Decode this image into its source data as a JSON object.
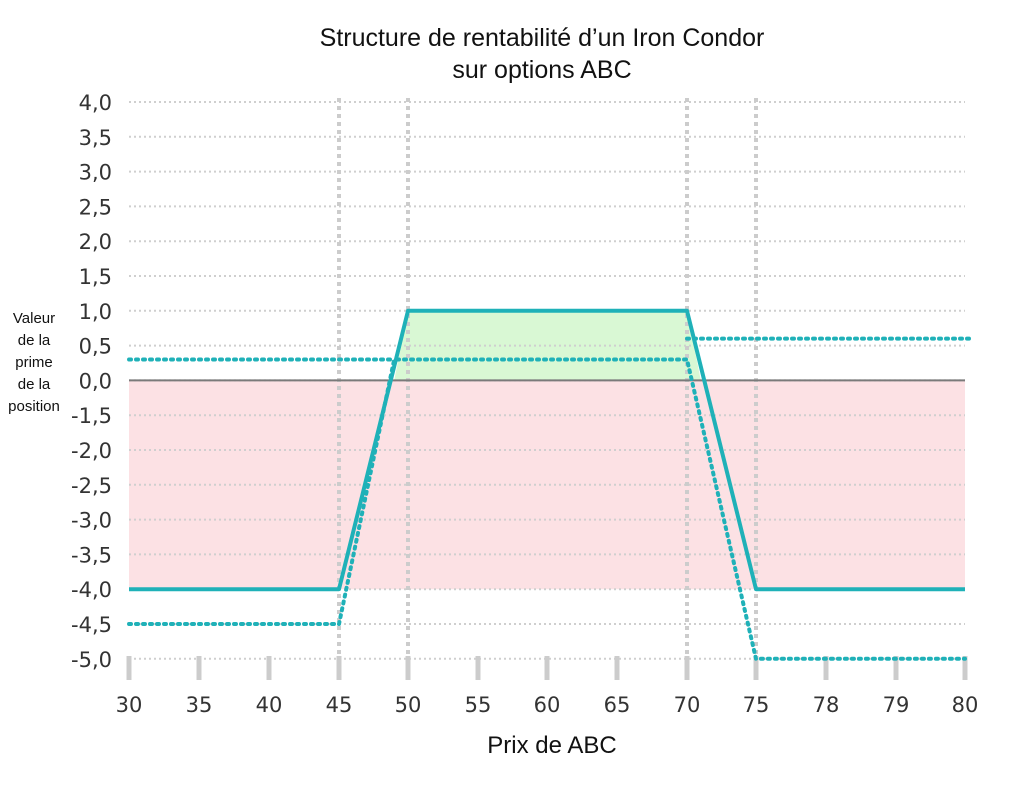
{
  "chart_data": {
    "type": "line",
    "title": "Structure de rentabilité d’un Iron Condor",
    "subtitle": "sur options ABC",
    "xlabel": "Prix de ABC",
    "ylabel_lines": [
      "Valeur",
      "de la",
      "prime",
      "de la",
      "position"
    ],
    "categories": [
      "30",
      "35",
      "40",
      "45",
      "50",
      "55",
      "60",
      "65",
      "70",
      "75",
      "78",
      "79",
      "80"
    ],
    "yticks": [
      "4,0",
      "3,5",
      "3,0",
      "2,5",
      "2,0",
      "1,5",
      "1,0",
      "0,5",
      "0,0",
      "-1,5",
      "-2,0",
      "-2,5",
      "-3,0",
      "-3,5",
      "-4,0",
      "-4,5",
      "-5,0"
    ],
    "strikes": [
      "45",
      "50",
      "70",
      "75"
    ],
    "series": [
      {
        "style": "solid",
        "color": "#1fb1b8",
        "points": [
          [
            "30",
            -4.0
          ],
          [
            "45",
            -4.0
          ],
          [
            "50",
            1.0
          ],
          [
            "70",
            1.0
          ],
          [
            "75",
            -4.0
          ],
          [
            "80",
            -4.0
          ]
        ]
      },
      {
        "style": "dotted",
        "color": "#1fb1b8",
        "points": [
          [
            "30",
            -4.5
          ],
          [
            "45",
            -4.5
          ],
          [
            "49",
            0.3
          ],
          [
            "70",
            0.3
          ],
          [
            "75",
            -5.0
          ],
          [
            "80",
            -5.0
          ]
        ]
      },
      {
        "style": "dotted-horizontal",
        "color": "#1fb1b8",
        "points": [
          [
            "70",
            0.6
          ],
          [
            "80",
            0.6
          ]
        ]
      }
    ],
    "profit_zone": {
      "from": "50",
      "to": "70",
      "color": "#d9f8d4"
    },
    "loss_zone": {
      "from": "30",
      "to": "80",
      "color": "#fce1e4"
    },
    "grid": true
  }
}
